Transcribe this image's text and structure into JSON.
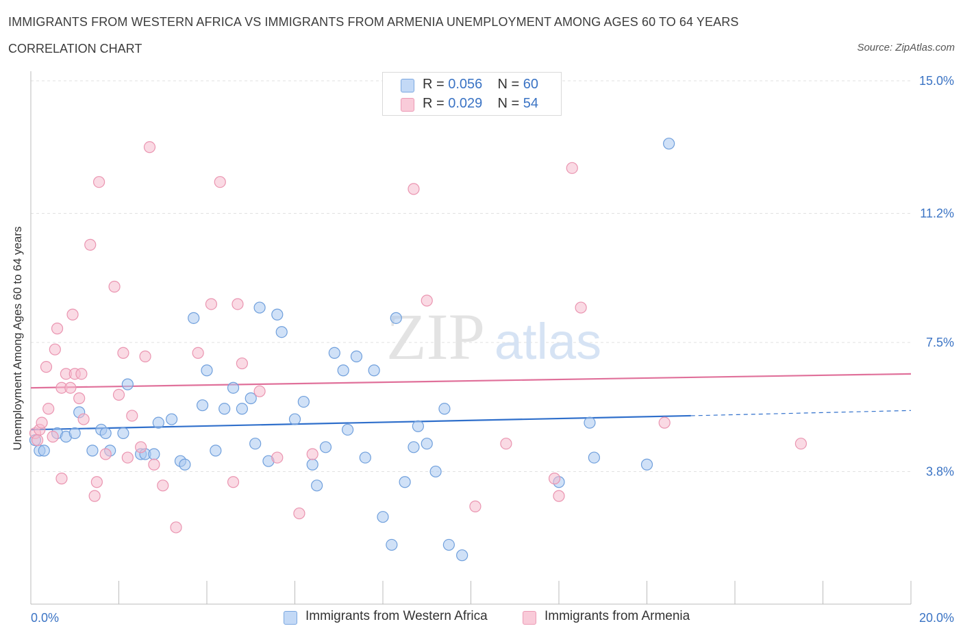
{
  "header": {
    "title": "IMMIGRANTS FROM WESTERN AFRICA VS IMMIGRANTS FROM ARMENIA UNEMPLOYMENT AMONG AGES 60 TO 64 YEARS",
    "subtitle": "CORRELATION CHART",
    "source": "Source: ZipAtlas.com"
  },
  "watermark": {
    "zip": "ZIP",
    "atlas": "atlas"
  },
  "legend": {
    "r_label": "R =",
    "n_label": "N =",
    "rows": [
      {
        "r": "0.056",
        "n": "60"
      },
      {
        "r": "0.029",
        "n": "54"
      }
    ]
  },
  "colors": {
    "blue_fill": "#a9c8f0",
    "blue_stroke": "#6f9fdc",
    "blue_line": "#2f6fcb",
    "pink_fill": "#f6bccd",
    "pink_stroke": "#ea94b0",
    "pink_line": "#e0709a",
    "tick_text": "#3a73c4",
    "grid": "#e1e1e1"
  },
  "chart_data": {
    "type": "scatter",
    "xlabel": "",
    "ylabel": "Unemployment Among Ages 60 to 64 years",
    "xlim": [
      0,
      20
    ],
    "ylim": [
      0,
      15
    ],
    "x_tick_labels": [
      {
        "value": 0,
        "label": "0.0%"
      },
      {
        "value": 20,
        "label": "20.0%"
      }
    ],
    "y_tick_labels": [
      {
        "value": 3.8,
        "label": "3.8%"
      },
      {
        "value": 7.5,
        "label": "7.5%"
      },
      {
        "value": 11.2,
        "label": "11.2%"
      },
      {
        "value": 15.0,
        "label": "15.0%"
      }
    ],
    "grid": true,
    "legend_position": "top-center",
    "series": [
      {
        "name": "Immigrants from Western Africa",
        "color": "blue",
        "trend": {
          "x": [
            0,
            15
          ],
          "y": [
            5.0,
            5.4
          ]
        },
        "trend_dashed": {
          "x": [
            15,
            20
          ],
          "y": [
            5.4,
            5.55
          ]
        },
        "points": [
          {
            "x": 0.1,
            "y": 4.7
          },
          {
            "x": 0.2,
            "y": 4.4
          },
          {
            "x": 0.3,
            "y": 4.4
          },
          {
            "x": 0.6,
            "y": 4.9
          },
          {
            "x": 0.8,
            "y": 4.8
          },
          {
            "x": 1.0,
            "y": 4.9
          },
          {
            "x": 1.1,
            "y": 5.5
          },
          {
            "x": 1.4,
            "y": 4.4
          },
          {
            "x": 1.6,
            "y": 5.0
          },
          {
            "x": 1.7,
            "y": 4.9
          },
          {
            "x": 1.8,
            "y": 4.4
          },
          {
            "x": 2.1,
            "y": 4.9
          },
          {
            "x": 2.2,
            "y": 6.3
          },
          {
            "x": 2.5,
            "y": 4.3
          },
          {
            "x": 2.6,
            "y": 4.3
          },
          {
            "x": 2.8,
            "y": 4.3
          },
          {
            "x": 2.9,
            "y": 5.2
          },
          {
            "x": 3.2,
            "y": 5.3
          },
          {
            "x": 3.4,
            "y": 4.1
          },
          {
            "x": 3.5,
            "y": 4.0
          },
          {
            "x": 3.7,
            "y": 8.2
          },
          {
            "x": 3.9,
            "y": 5.7
          },
          {
            "x": 4.0,
            "y": 6.7
          },
          {
            "x": 4.2,
            "y": 4.4
          },
          {
            "x": 4.4,
            "y": 5.6
          },
          {
            "x": 4.6,
            "y": 6.2
          },
          {
            "x": 4.8,
            "y": 5.6
          },
          {
            "x": 5.0,
            "y": 5.9
          },
          {
            "x": 5.1,
            "y": 4.6
          },
          {
            "x": 5.2,
            "y": 8.5
          },
          {
            "x": 5.4,
            "y": 4.1
          },
          {
            "x": 5.6,
            "y": 8.3
          },
          {
            "x": 5.7,
            "y": 7.8
          },
          {
            "x": 6.0,
            "y": 5.3
          },
          {
            "x": 6.2,
            "y": 5.8
          },
          {
            "x": 6.4,
            "y": 4.0
          },
          {
            "x": 6.5,
            "y": 3.4
          },
          {
            "x": 6.7,
            "y": 4.5
          },
          {
            "x": 6.9,
            "y": 7.2
          },
          {
            "x": 7.1,
            "y": 6.7
          },
          {
            "x": 7.2,
            "y": 5.0
          },
          {
            "x": 7.4,
            "y": 7.1
          },
          {
            "x": 7.6,
            "y": 4.2
          },
          {
            "x": 7.8,
            "y": 6.7
          },
          {
            "x": 8.0,
            "y": 2.5
          },
          {
            "x": 8.2,
            "y": 1.7
          },
          {
            "x": 8.3,
            "y": 8.2
          },
          {
            "x": 8.5,
            "y": 3.5
          },
          {
            "x": 8.7,
            "y": 4.5
          },
          {
            "x": 8.8,
            "y": 5.1
          },
          {
            "x": 9.0,
            "y": 4.6
          },
          {
            "x": 9.2,
            "y": 3.8
          },
          {
            "x": 9.4,
            "y": 5.6
          },
          {
            "x": 9.5,
            "y": 1.7
          },
          {
            "x": 9.8,
            "y": 1.4
          },
          {
            "x": 12.0,
            "y": 3.5
          },
          {
            "x": 12.7,
            "y": 5.2
          },
          {
            "x": 12.8,
            "y": 4.2
          },
          {
            "x": 14.0,
            "y": 4.0
          },
          {
            "x": 14.5,
            "y": 13.2
          }
        ]
      },
      {
        "name": "Immigrants from Armenia",
        "color": "pink",
        "trend": {
          "x": [
            0,
            20
          ],
          "y": [
            6.2,
            6.6
          ]
        },
        "points": [
          {
            "x": 0.1,
            "y": 4.9
          },
          {
            "x": 0.2,
            "y": 5.0
          },
          {
            "x": 0.25,
            "y": 5.2
          },
          {
            "x": 0.35,
            "y": 6.8
          },
          {
            "x": 0.4,
            "y": 5.6
          },
          {
            "x": 0.5,
            "y": 4.8
          },
          {
            "x": 0.55,
            "y": 7.3
          },
          {
            "x": 0.6,
            "y": 7.9
          },
          {
            "x": 0.7,
            "y": 6.2
          },
          {
            "x": 0.7,
            "y": 3.6
          },
          {
            "x": 0.8,
            "y": 6.6
          },
          {
            "x": 0.9,
            "y": 6.2
          },
          {
            "x": 0.95,
            "y": 8.3
          },
          {
            "x": 1.0,
            "y": 6.6
          },
          {
            "x": 1.1,
            "y": 5.9
          },
          {
            "x": 1.15,
            "y": 6.6
          },
          {
            "x": 1.2,
            "y": 5.3
          },
          {
            "x": 1.35,
            "y": 10.3
          },
          {
            "x": 1.45,
            "y": 3.1
          },
          {
            "x": 1.5,
            "y": 3.5
          },
          {
            "x": 1.55,
            "y": 12.1
          },
          {
            "x": 1.7,
            "y": 4.3
          },
          {
            "x": 1.9,
            "y": 9.1
          },
          {
            "x": 2.0,
            "y": 6.0
          },
          {
            "x": 2.1,
            "y": 7.2
          },
          {
            "x": 2.2,
            "y": 4.2
          },
          {
            "x": 2.3,
            "y": 5.4
          },
          {
            "x": 2.5,
            "y": 4.5
          },
          {
            "x": 2.6,
            "y": 7.1
          },
          {
            "x": 2.7,
            "y": 13.1
          },
          {
            "x": 2.8,
            "y": 4.0
          },
          {
            "x": 3.0,
            "y": 3.4
          },
          {
            "x": 3.3,
            "y": 2.2
          },
          {
            "x": 3.8,
            "y": 7.2
          },
          {
            "x": 4.1,
            "y": 8.6
          },
          {
            "x": 4.3,
            "y": 12.1
          },
          {
            "x": 4.6,
            "y": 3.5
          },
          {
            "x": 4.7,
            "y": 8.6
          },
          {
            "x": 4.8,
            "y": 6.9
          },
          {
            "x": 5.2,
            "y": 6.1
          },
          {
            "x": 5.6,
            "y": 4.2
          },
          {
            "x": 6.1,
            "y": 2.6
          },
          {
            "x": 6.4,
            "y": 4.3
          },
          {
            "x": 8.7,
            "y": 11.9
          },
          {
            "x": 9.0,
            "y": 8.7
          },
          {
            "x": 10.1,
            "y": 2.8
          },
          {
            "x": 10.8,
            "y": 4.6
          },
          {
            "x": 11.9,
            "y": 3.6
          },
          {
            "x": 12.0,
            "y": 3.1
          },
          {
            "x": 12.3,
            "y": 12.5
          },
          {
            "x": 12.5,
            "y": 8.5
          },
          {
            "x": 14.4,
            "y": 5.2
          },
          {
            "x": 17.5,
            "y": 4.6
          },
          {
            "x": 0.15,
            "y": 4.7
          }
        ]
      }
    ]
  }
}
